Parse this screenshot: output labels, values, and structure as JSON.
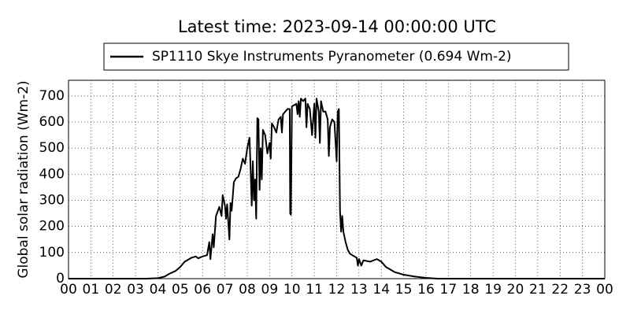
{
  "chart_data": {
    "type": "line",
    "title": "Latest time: 2023-09-14 00:00:00 UTC",
    "ylabel": "Global solar radiation (Wm-2)",
    "grid": true,
    "legend": "top",
    "xlim": [
      0,
      24
    ],
    "ylim": [
      0,
      760
    ],
    "yticks": [
      0,
      100,
      200,
      300,
      400,
      500,
      600,
      700
    ],
    "xticks": [
      {
        "value": 0,
        "label": "00"
      },
      {
        "value": 1,
        "label": "01"
      },
      {
        "value": 2,
        "label": "02"
      },
      {
        "value": 3,
        "label": "03"
      },
      {
        "value": 4,
        "label": "04"
      },
      {
        "value": 5,
        "label": "05"
      },
      {
        "value": 6,
        "label": "06"
      },
      {
        "value": 7,
        "label": "07"
      },
      {
        "value": 8,
        "label": "08"
      },
      {
        "value": 9,
        "label": "09"
      },
      {
        "value": 10,
        "label": "10"
      },
      {
        "value": 11,
        "label": "11"
      },
      {
        "value": 12,
        "label": "12"
      },
      {
        "value": 13,
        "label": "13"
      },
      {
        "value": 14,
        "label": "14"
      },
      {
        "value": 15,
        "label": "15"
      },
      {
        "value": 16,
        "label": "16"
      },
      {
        "value": 17,
        "label": "17"
      },
      {
        "value": 18,
        "label": "18"
      },
      {
        "value": 19,
        "label": "19"
      },
      {
        "value": 20,
        "label": "20"
      },
      {
        "value": 21,
        "label": "21"
      },
      {
        "value": 22,
        "label": "22"
      },
      {
        "value": 23,
        "label": "23"
      },
      {
        "value": 24,
        "label": "00"
      }
    ],
    "series": [
      {
        "name": "SP1110 Skye Instruments Pyranometer (0.694 Wm-2)",
        "color": "#000000",
        "x": [
          0,
          3.5,
          4.0,
          4.3,
          4.5,
          4.8,
          5.0,
          5.2,
          5.5,
          5.7,
          5.8,
          6.0,
          6.2,
          6.3,
          6.35,
          6.45,
          6.5,
          6.6,
          6.75,
          6.85,
          6.9,
          7.0,
          7.05,
          7.1,
          7.2,
          7.25,
          7.3,
          7.4,
          7.5,
          7.6,
          7.7,
          7.8,
          7.9,
          8.0,
          8.1,
          8.15,
          8.2,
          8.25,
          8.3,
          8.35,
          8.4,
          8.45,
          8.5,
          8.55,
          8.6,
          8.65,
          8.7,
          8.8,
          8.9,
          9.0,
          9.05,
          9.1,
          9.2,
          9.3,
          9.4,
          9.5,
          9.55,
          9.6,
          9.8,
          9.9,
          9.92,
          9.95,
          10.0,
          10.2,
          10.25,
          10.3,
          10.35,
          10.4,
          10.5,
          10.6,
          10.65,
          10.7,
          10.8,
          10.9,
          11.0,
          11.05,
          11.1,
          11.2,
          11.25,
          11.3,
          11.4,
          11.5,
          11.6,
          11.65,
          11.7,
          11.8,
          11.9,
          12.0,
          12.05,
          12.1,
          12.15,
          12.2,
          12.25,
          12.3,
          12.4,
          12.5,
          12.6,
          12.8,
          12.9,
          12.95,
          13.0,
          13.1,
          13.2,
          13.5,
          13.8,
          14.0,
          14.2,
          14.4,
          14.6,
          15.0,
          15.5,
          16.0,
          16.5,
          24
        ],
        "values": [
          0,
          0,
          2,
          8,
          18,
          30,
          45,
          65,
          80,
          85,
          78,
          85,
          90,
          140,
          75,
          170,
          120,
          240,
          275,
          240,
          320,
          280,
          230,
          285,
          150,
          290,
          260,
          370,
          385,
          390,
          420,
          460,
          440,
          500,
          540,
          420,
          280,
          450,
          300,
          380,
          230,
          615,
          610,
          340,
          500,
          380,
          570,
          550,
          480,
          520,
          460,
          595,
          580,
          560,
          610,
          620,
          560,
          630,
          650,
          650,
          250,
          245,
          660,
          670,
          630,
          680,
          620,
          690,
          680,
          690,
          580,
          670,
          650,
          550,
          670,
          540,
          690,
          640,
          520,
          680,
          640,
          640,
          610,
          470,
          580,
          610,
          600,
          450,
          640,
          650,
          260,
          180,
          240,
          180,
          140,
          110,
          95,
          85,
          80,
          50,
          75,
          50,
          70,
          65,
          75,
          65,
          45,
          35,
          25,
          15,
          8,
          3,
          0,
          0
        ]
      }
    ]
  }
}
